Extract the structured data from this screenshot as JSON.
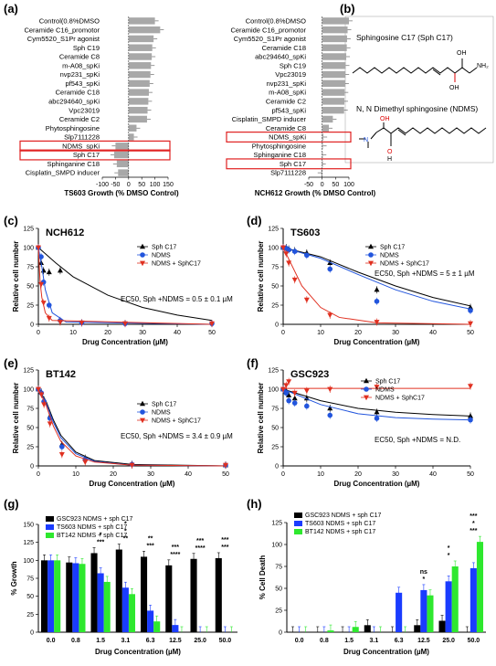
{
  "panels": {
    "a": "(a)",
    "b": "(b)",
    "c": "(c)",
    "d": "(d)",
    "e": "(e)",
    "f": "(f)",
    "g": "(g)",
    "h": "(h)"
  },
  "colors": {
    "sph": "#000000",
    "ndms": "#2255dd",
    "combo": "#e03020",
    "gray_bar": "#a8a8a8",
    "highlight": "#e02020",
    "gsc923": "#000000",
    "ts603": "#1a3cff",
    "bt142": "#2ee82e"
  },
  "structures": {
    "sph_name": "Sphingosine C17 (Sph C17)",
    "ndms_name": "N, N Dimethyl sphingosine (NDMS)",
    "atom_nh2": "NH₂",
    "atom_oh": "OH",
    "atom_o": "O",
    "atom_h": "H",
    "atom_n": "N"
  },
  "chart_data": [
    {
      "type": "bar",
      "orientation": "horizontal",
      "categories": [
        "Control(0.8%DMSO",
        "Ceramide C16_promotor",
        "Cym5520_S1Pr agonist",
        "Sph C19",
        "Ceramide C8",
        "m-A08_spKi",
        "nvp231_spKi",
        "pf543_spKi",
        "Ceramide C18",
        "abc294640_spKi",
        "Vpc23019",
        "Ceramide C2",
        "Phytosphingosine",
        "Slp7111228",
        "NDMS_spKi",
        "Sph C17",
        "Sphinganine C18",
        "Cisplatin_SMPD inducer"
      ],
      "values": [
        100,
        120,
        95,
        90,
        88,
        85,
        83,
        80,
        77,
        75,
        72,
        70,
        30,
        20,
        -50,
        -55,
        -45,
        -40
      ],
      "highlighted": [
        "NDMS_spKi",
        "Sph C17"
      ],
      "xlabel": "TS603 Growth (% DMSO Control)",
      "xticks": [
        "-100",
        "-50",
        "0",
        "50",
        "100",
        "150"
      ],
      "xlim": [
        -100,
        150
      ]
    },
    {
      "type": "bar",
      "orientation": "horizontal",
      "categories": [
        "Control(0.8%DMSO",
        "Ceramide C16_promotor",
        "Cym5520_S1Pr agonist",
        "Ceramide C18",
        "abc294640_spKi",
        "Sph C19",
        "Vpc23019",
        "nvp231_spKi",
        "m-A08_spKi",
        "Ceramide C2",
        "pf543_spKi",
        "Cisplatin_SMPD inducer",
        "Ceramide C8",
        "NDMS_spKi",
        "Phytosphingosine",
        "Sphinganine C18",
        "Sph C17",
        "Slp7111228"
      ],
      "values": [
        100,
        95,
        93,
        92,
        90,
        88,
        87,
        86,
        84,
        83,
        82,
        40,
        25,
        5,
        3,
        2,
        0,
        -3
      ],
      "highlighted": [
        "NDMS_spKi",
        "Sph C17"
      ],
      "xlabel": "NCH612 Growth (% DMSO Control)",
      "xticks": [
        "-50",
        "0",
        "50",
        "100"
      ],
      "xlim": [
        -50,
        100
      ]
    },
    {
      "type": "scatter",
      "title": "NCH612",
      "xlabel": "Drug Concentration (µM)",
      "ylabel": "Relative cell number",
      "xlim": [
        0,
        50
      ],
      "ylim": [
        0,
        125
      ],
      "xticks": [
        "0",
        "10",
        "20",
        "30",
        "40",
        "50"
      ],
      "yticks": [
        "0",
        "25",
        "50",
        "75",
        "100",
        "125"
      ],
      "annotation": "EC50, Sph +NDMS = 0.5 ± 0.1 µM",
      "series": [
        {
          "name": "Sph C17",
          "x": [
            0,
            0.8,
            1.5,
            3.1,
            6.3
          ],
          "y": [
            100,
            80,
            70,
            68,
            70
          ],
          "fit": [
            [
              0,
              100
            ],
            [
              5,
              80
            ],
            [
              10,
              62
            ],
            [
              20,
              38
            ],
            [
              30,
              22
            ],
            [
              40,
              12
            ],
            [
              50,
              5
            ]
          ]
        },
        {
          "name": "NDMS",
          "x": [
            0,
            0.8,
            1.5,
            3.1,
            6.3,
            12.5,
            25,
            50
          ],
          "y": [
            100,
            88,
            55,
            25,
            5,
            2,
            1,
            1
          ],
          "fit": [
            [
              0,
              100
            ],
            [
              1,
              75
            ],
            [
              2,
              45
            ],
            [
              4,
              15
            ],
            [
              8,
              3
            ],
            [
              50,
              0
            ]
          ]
        },
        {
          "name": "NDMS + SphC17",
          "x": [
            0,
            0.8,
            1.5,
            3.1,
            6.3,
            12.5,
            25,
            50
          ],
          "y": [
            100,
            52,
            28,
            8,
            3,
            2,
            1,
            1
          ],
          "fit": [
            [
              0,
              100
            ],
            [
              0.5,
              55
            ],
            [
              1,
              35
            ],
            [
              2,
              15
            ],
            [
              4,
              5
            ],
            [
              50,
              0
            ]
          ]
        }
      ]
    },
    {
      "type": "scatter",
      "title": "TS603",
      "xlabel": "Drug Concentration (µM)",
      "ylabel": "Relative cell number",
      "xlim": [
        0,
        50
      ],
      "ylim": [
        0,
        125
      ],
      "xticks": [
        "0",
        "10",
        "20",
        "30",
        "40",
        "50"
      ],
      "yticks": [
        "0",
        "25",
        "50",
        "75",
        "100",
        "125"
      ],
      "annotation": "EC50, Sph +NDMS = 5 ± 1 µM",
      "series": [
        {
          "name": "Sph C17",
          "x": [
            0,
            0.8,
            1.5,
            3.1,
            6.3,
            12.5,
            25,
            50
          ],
          "y": [
            100,
            100,
            98,
            96,
            93,
            80,
            45,
            22
          ],
          "fit": [
            [
              0,
              100
            ],
            [
              10,
              88
            ],
            [
              20,
              68
            ],
            [
              30,
              50
            ],
            [
              40,
              35
            ],
            [
              50,
              24
            ]
          ]
        },
        {
          "name": "NDMS",
          "x": [
            0,
            0.8,
            1.5,
            3.1,
            6.3,
            12.5,
            25,
            50
          ],
          "y": [
            100,
            99,
            97,
            95,
            90,
            72,
            30,
            18
          ],
          "fit": [
            [
              0,
              100
            ],
            [
              10,
              86
            ],
            [
              20,
              65
            ],
            [
              30,
              45
            ],
            [
              40,
              30
            ],
            [
              50,
              20
            ]
          ]
        },
        {
          "name": "NDMS + SphC17",
          "x": [
            0,
            0.8,
            1.5,
            3.1,
            6.3,
            12.5,
            25,
            50
          ],
          "y": [
            100,
            92,
            80,
            58,
            32,
            12,
            3,
            1
          ],
          "fit": [
            [
              0,
              100
            ],
            [
              2,
              80
            ],
            [
              5,
              50
            ],
            [
              10,
              22
            ],
            [
              15,
              9
            ],
            [
              25,
              2
            ],
            [
              50,
              0
            ]
          ]
        }
      ]
    },
    {
      "type": "scatter",
      "title": "BT142",
      "xlabel": "Drug Concentration (µM)",
      "ylabel": "Relative cell number",
      "xlim": [
        0,
        50
      ],
      "ylim": [
        0,
        125
      ],
      "xticks": [
        "0",
        "10",
        "20",
        "30",
        "40",
        "50"
      ],
      "yticks": [
        "0",
        "25",
        "50",
        "75",
        "100",
        "125"
      ],
      "annotation": "EC50, Sph +NDMS = 3.4 ± 0.9 µM",
      "series": [
        {
          "name": "Sph C17",
          "x": [
            0,
            0.8,
            1.5,
            3.1,
            6.3,
            12.5,
            25,
            50
          ],
          "y": [
            100,
            96,
            86,
            65,
            28,
            10,
            2,
            1
          ],
          "fit": [
            [
              0,
              100
            ],
            [
              2,
              85
            ],
            [
              4,
              60
            ],
            [
              6,
              40
            ],
            [
              10,
              18
            ],
            [
              15,
              7
            ],
            [
              25,
              2
            ],
            [
              50,
              0
            ]
          ]
        },
        {
          "name": "NDMS",
          "x": [
            0,
            0.8,
            1.5,
            3.1,
            6.3,
            12.5,
            25,
            50
          ],
          "y": [
            100,
            95,
            84,
            62,
            25,
            8,
            2,
            1
          ],
          "fit": [
            [
              0,
              100
            ],
            [
              2,
              83
            ],
            [
              4,
              57
            ],
            [
              6,
              37
            ],
            [
              10,
              16
            ],
            [
              15,
              6
            ],
            [
              25,
              1
            ],
            [
              50,
              0
            ]
          ]
        },
        {
          "name": "NDMS + SphC17",
          "x": [
            0,
            0.8,
            1.5,
            3.1,
            6.3,
            12.5,
            25,
            50
          ],
          "y": [
            100,
            93,
            80,
            55,
            15,
            5,
            1,
            1
          ],
          "fit": [
            [
              0,
              100
            ],
            [
              2,
              80
            ],
            [
              4,
              52
            ],
            [
              6,
              32
            ],
            [
              10,
              13
            ],
            [
              15,
              5
            ],
            [
              25,
              1
            ],
            [
              50,
              0
            ]
          ]
        }
      ]
    },
    {
      "type": "scatter",
      "title": "GSC923",
      "xlabel": "Drug Concentration (µM)",
      "ylabel": "Relative cell number",
      "xlim": [
        0,
        50
      ],
      "ylim": [
        0,
        125
      ],
      "xticks": [
        "0",
        "10",
        "20",
        "30",
        "40",
        "50"
      ],
      "yticks": [
        "0",
        "25",
        "50",
        "75",
        "100",
        "125"
      ],
      "annotation": "EC50, Sph +NDMS = N.D.",
      "series": [
        {
          "name": "Sph C17",
          "x": [
            0,
            0.8,
            1.5,
            3.1,
            6.3,
            12.5,
            25,
            50
          ],
          "y": [
            100,
            98,
            92,
            88,
            88,
            75,
            70,
            65
          ],
          "fit": [
            [
              0,
              100
            ],
            [
              10,
              85
            ],
            [
              20,
              75
            ],
            [
              30,
              70
            ],
            [
              40,
              67
            ],
            [
              50,
              65
            ]
          ]
        },
        {
          "name": "NDMS",
          "x": [
            0,
            0.8,
            1.5,
            3.1,
            6.3,
            12.5,
            25,
            50
          ],
          "y": [
            100,
            95,
            85,
            82,
            78,
            66,
            62,
            60
          ],
          "fit": [
            [
              0,
              100
            ],
            [
              10,
              80
            ],
            [
              20,
              68
            ],
            [
              30,
              63
            ],
            [
              40,
              61
            ],
            [
              50,
              60
            ]
          ]
        },
        {
          "name": "NDMS + SphC17",
          "x": [
            0,
            0.8,
            1.5,
            3.1,
            6.3,
            12.5,
            25,
            50
          ],
          "y": [
            100,
            105,
            110,
            95,
            98,
            100,
            103,
            104
          ],
          "fit": [
            [
              0,
              101
            ],
            [
              50,
              101
            ]
          ]
        }
      ]
    },
    {
      "type": "bar",
      "xlabel": "Drug Concentration (µM)",
      "ylabel": "% Growth",
      "categories": [
        "0.0",
        "0.8",
        "1.5",
        "3.1",
        "6.3",
        "12.5",
        "25.0",
        "50.0"
      ],
      "ylim": [
        0,
        150
      ],
      "yticks": [
        "0",
        "25",
        "50",
        "75",
        "100",
        "125",
        "150"
      ],
      "series": [
        {
          "name": "GSC923 NDMS + sph C17",
          "values": [
            100,
            97,
            110,
            115,
            105,
            93,
            102,
            103
          ]
        },
        {
          "name": "TS603 NDMS + sph C17",
          "values": [
            100,
            96,
            82,
            62,
            30,
            10,
            0,
            0
          ]
        },
        {
          "name": "BT142 NDMS + sph C17",
          "values": [
            100,
            95,
            70,
            53,
            15,
            0,
            0,
            0
          ]
        }
      ],
      "stars": [
        {
          "cat": 2,
          "text": "***"
        },
        {
          "cat": 2,
          "text": "*"
        },
        {
          "cat": 3,
          "text": "**"
        },
        {
          "cat": 3,
          "text": "*"
        },
        {
          "cat": 3,
          "text": "*"
        },
        {
          "cat": 4,
          "text": "***"
        },
        {
          "cat": 4,
          "text": "**"
        },
        {
          "cat": 5,
          "text": "****"
        },
        {
          "cat": 5,
          "text": "***"
        },
        {
          "cat": 6,
          "text": "****"
        },
        {
          "cat": 6,
          "text": "***"
        },
        {
          "cat": 7,
          "text": "***"
        },
        {
          "cat": 7,
          "text": "***"
        }
      ]
    },
    {
      "type": "bar",
      "xlabel": "Drug Concentration (µM)",
      "ylabel": "% Cell Death",
      "categories": [
        "0.0",
        "0.8",
        "1.5",
        "3.1",
        "6.3",
        "12.5",
        "25.0",
        "50.0"
      ],
      "ylim": [
        0,
        125
      ],
      "yticks": [
        "0",
        "25",
        "50",
        "75",
        "100",
        "125"
      ],
      "series": [
        {
          "name": "GSC923 NDMS + sph C17",
          "values": [
            0,
            0,
            0,
            8,
            0,
            8,
            13,
            0
          ]
        },
        {
          "name": "TS603 NDMS + sph C17",
          "values": [
            0,
            0,
            0,
            0,
            45,
            48,
            58,
            73
          ]
        },
        {
          "name": "BT142 NDMS + sph C17",
          "values": [
            0,
            2,
            6,
            0,
            0,
            42,
            75,
            103
          ]
        }
      ],
      "stars": [
        {
          "cat": 5,
          "text": "*"
        },
        {
          "cat": 5,
          "text": "ns"
        },
        {
          "cat": 6,
          "text": "*"
        },
        {
          "cat": 6,
          "text": "*"
        },
        {
          "cat": 7,
          "text": "***"
        },
        {
          "cat": 7,
          "text": "*"
        },
        {
          "cat": 7,
          "text": "***"
        }
      ]
    }
  ]
}
